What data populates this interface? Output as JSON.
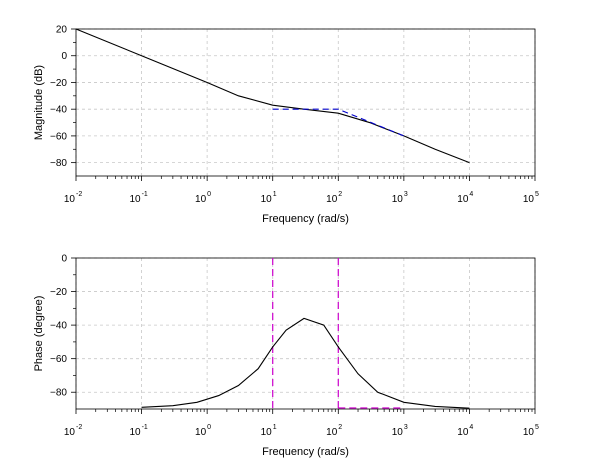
{
  "chart_data": [
    {
      "type": "line",
      "xscale": "log",
      "xlim": [
        0.01,
        100000
      ],
      "ylim": [
        -90,
        20
      ],
      "xlabel": "Frequency (rad/s)",
      "ylabel": "Magnitude (dB)",
      "grid": true,
      "x_tick_base": "10",
      "x_tick_exponents": [
        "-2",
        "-1",
        "0",
        "1",
        "2",
        "3",
        "4",
        "5"
      ],
      "y_ticks": [
        20,
        0,
        -20,
        -40,
        -60,
        -80
      ],
      "y_tick_labels": [
        "20",
        "0",
        "−20",
        "−40",
        "−60",
        "−80"
      ],
      "colors": {
        "actual": "#000000",
        "asymptote": "#0000cc"
      },
      "series": [
        {
          "style": "solid",
          "x": [
            0.01,
            0.1,
            1,
            3,
            10,
            30,
            100,
            300,
            1000,
            3000,
            10000
          ],
          "y": [
            20,
            0,
            -20,
            -30,
            -37,
            -40,
            -43,
            -50,
            -60,
            -70,
            -80
          ]
        },
        {
          "style": "dashed",
          "x": [
            10,
            20,
            40,
            70,
            100,
            200,
            500,
            1000
          ],
          "y": [
            -40,
            -40,
            -40,
            -40,
            -40,
            -46,
            -54,
            -60
          ]
        }
      ]
    },
    {
      "type": "line",
      "xscale": "log",
      "xlim": [
        0.01,
        100000
      ],
      "ylim": [
        -90,
        0
      ],
      "xlabel": "Frequency (rad/s)",
      "ylabel": "Phase (degree)",
      "grid": true,
      "x_tick_base": "10",
      "x_tick_exponents": [
        "-2",
        "-1",
        "0",
        "1",
        "2",
        "3",
        "4",
        "5"
      ],
      "y_ticks": [
        0,
        -20,
        -40,
        -60,
        -80
      ],
      "y_tick_labels": [
        "0",
        "−20",
        "−40",
        "−60",
        "−80"
      ],
      "colors": {
        "actual": "#000000",
        "markers": "#cc00cc"
      },
      "series": [
        {
          "style": "solid",
          "x": [
            0.1,
            0.3,
            0.7,
            1.5,
            3,
            6,
            10,
            16,
            30,
            60,
            100,
            200,
            400,
            1000,
            3000,
            10000
          ],
          "y": [
            -89,
            -88,
            -86,
            -82,
            -76,
            -66,
            -53,
            -43,
            -36,
            -40,
            -53,
            -69,
            -80,
            -86,
            -88.5,
            -89.5
          ]
        }
      ],
      "vertical_markers": [
        10,
        100
      ],
      "horizontal_dashed": {
        "y": -90,
        "x": [
          100,
          1000
        ]
      }
    }
  ]
}
